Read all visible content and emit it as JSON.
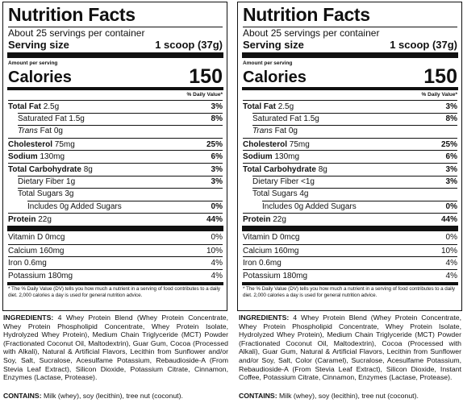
{
  "labels": [
    {
      "title": "Nutrition Facts",
      "servings_per_container": "About 25 servings per container",
      "serving_size_label": "Serving size",
      "serving_size_value": "1 scoop (37g)",
      "amount_per_serving": "Amount per serving",
      "calories_label": "Calories",
      "calories_value": "150",
      "dv_header": "% Daily Value*",
      "nutrients": [
        {
          "name": "Total Fat",
          "amount": "2.5g",
          "dv": "3%"
        },
        {
          "name": "Saturated Fat",
          "amount": "1.5g",
          "dv": "8%"
        },
        {
          "name": "Trans",
          "amount": "Fat 0g",
          "dv": ""
        },
        {
          "name": "Cholesterol",
          "amount": "75mg",
          "dv": "25%"
        },
        {
          "name": "Sodium",
          "amount": "130mg",
          "dv": "6%"
        },
        {
          "name": "Total Carbohydrate",
          "amount": "8g",
          "dv": "3%"
        },
        {
          "name": "Dietary Fiber",
          "amount": "1g",
          "dv": "3%"
        },
        {
          "name": "Total Sugars",
          "amount": "3g",
          "dv": ""
        },
        {
          "name": "Includes 0g Added Sugars",
          "amount": "",
          "dv": "0%"
        },
        {
          "name": "Protein",
          "amount": "22g",
          "dv": "44%"
        }
      ],
      "vitamins": [
        {
          "name": "Vitamin D 0mcg",
          "dv": "0%"
        },
        {
          "name": "Calcium 160mg",
          "dv": "10%"
        },
        {
          "name": "Iron 0.6mg",
          "dv": "4%"
        },
        {
          "name": "Potassium 180mg",
          "dv": "4%"
        }
      ],
      "footnote": "* The % Daily Value (DV) tells you how much a nutrient in a serving of food contributes to a daily diet. 2,000 calories a day is used for general nutrition advice."
    },
    {
      "title": "Nutrition Facts",
      "servings_per_container": "About 25 servings per container",
      "serving_size_label": "Serving size",
      "serving_size_value": "1 scoop (37g)",
      "amount_per_serving": "Amount per serving",
      "calories_label": "Calories",
      "calories_value": "150",
      "dv_header": "% Daily Value*",
      "nutrients": [
        {
          "name": "Total Fat",
          "amount": "2.5g",
          "dv": "3%"
        },
        {
          "name": "Saturated Fat",
          "amount": "1.5g",
          "dv": "8%"
        },
        {
          "name": "Trans",
          "amount": "Fat 0g",
          "dv": ""
        },
        {
          "name": "Cholesterol",
          "amount": "75mg",
          "dv": "25%"
        },
        {
          "name": "Sodium",
          "amount": "130mg",
          "dv": "6%"
        },
        {
          "name": "Total Carbohydrate",
          "amount": "8g",
          "dv": "3%"
        },
        {
          "name": "Dietary Fiber",
          "amount": "<1g",
          "dv": "3%"
        },
        {
          "name": "Total Sugars",
          "amount": "4g",
          "dv": ""
        },
        {
          "name": "Includes 0g Added Sugars",
          "amount": "",
          "dv": "0%"
        },
        {
          "name": "Protein",
          "amount": "22g",
          "dv": "44%"
        }
      ],
      "vitamins": [
        {
          "name": "Vitamin D 0mcg",
          "dv": "0%"
        },
        {
          "name": "Calcium 160mg",
          "dv": "10%"
        },
        {
          "name": "Iron 0.6mg",
          "dv": "4%"
        },
        {
          "name": "Potassium 180mg",
          "dv": "4%"
        }
      ],
      "footnote": "* The % Daily Value (DV) tells you how much a nutrient in a serving of food contributes to a daily diet. 2,000 calories a day is used for general nutrition advice."
    }
  ],
  "ingredients": [
    {
      "label": "INGREDIENTS:",
      "text": "4 Whey Protein Blend (Whey Protein Concentrate, Whey Protein Phospholipid Concentrate, Whey Protein Isolate, Hydrolyzed Whey Protein), Medium Chain Triglyceride (MCT) Powder (Fractionated Coconut Oil, Maltodextrin), Guar Gum, Cocoa (Processed with Alkali), Natural & Artificial Flavors, Lecithin from Sunflower and/or Soy, Salt, Sucralose, Acesulfame Potassium, Rebaudioside-A (From Stevia Leaf Extract), Silicon Dioxide, Potassium Citrate, Cinnamon, Enzymes (Lactase, Protease).",
      "contains_label": "CONTAINS:",
      "contains_text": "Milk (whey), soy (lecithin), tree nut (coconut)."
    },
    {
      "label": "INGREDIENTS:",
      "text": "4 Whey Protein Blend (Whey Protein Concentrate, Whey Protein Phospholipid Concentrate, Whey Protein Isolate, Hydrolyzed Whey Protein), Medium Chain Triglyceride (MCT) Powder (Fractionated Coconut Oil, Maltodextrin), Cocoa (Processed with Alkali), Guar Gum, Natural & Artificial Flavors, Lecithin from Sunflower and/or Soy, Salt, Color (Caramel), Sucralose, Acesulfame Potassium, Rebaudioside-A (From Stevia Leaf Extract), Silicon Dioxide, Instant Coffee, Potassium Citrate, Cinnamon, Enzymes (Lactase, Protease).",
      "contains_label": "CONTAINS:",
      "contains_text": "Milk (whey), soy (lecithin), tree nut (coconut)."
    }
  ]
}
